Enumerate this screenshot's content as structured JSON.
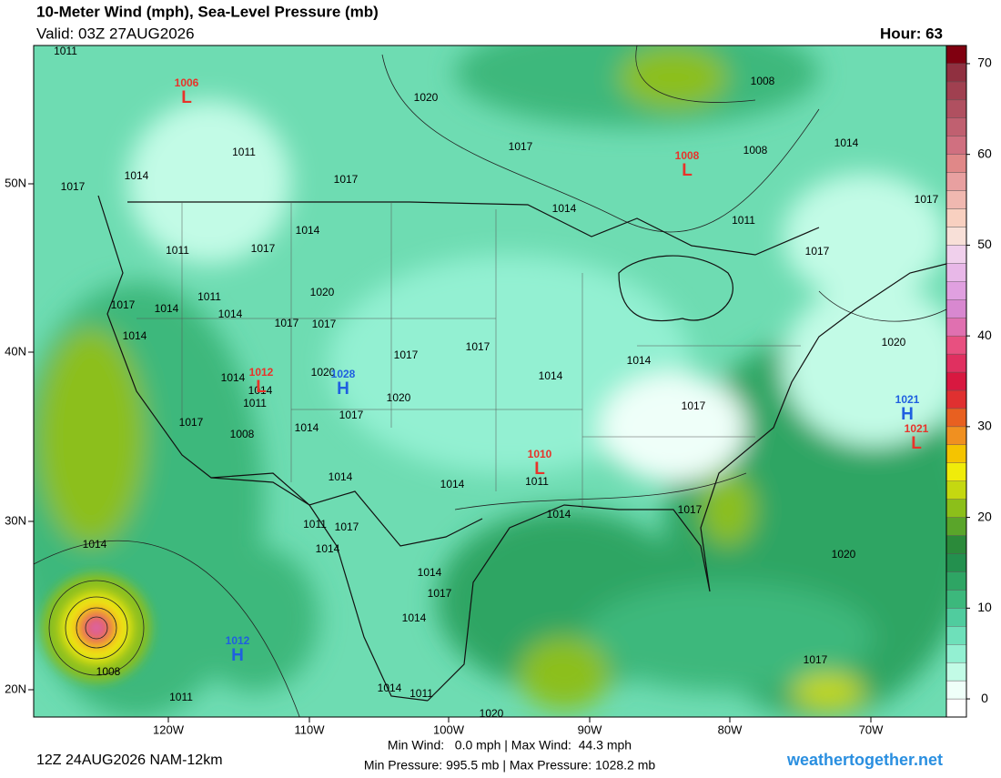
{
  "header": {
    "title": "10-Meter Wind (mph), Sea-Level Pressure (mb)",
    "valid": "Valid: 03Z 27AUG2026",
    "hour": "Hour: 63"
  },
  "map": {
    "lon_labels": [
      "120W",
      "110W",
      "100W",
      "90W",
      "80W",
      "70W"
    ],
    "lat_labels": [
      "50N",
      "40N",
      "30N",
      "20N"
    ],
    "pressure_centers": [
      {
        "kind": "L",
        "value": "1006",
        "color": "#e8332a"
      },
      {
        "kind": "L",
        "value": "1008",
        "color": "#e8332a"
      },
      {
        "kind": "L",
        "value": "1012",
        "color": "#e8332a"
      },
      {
        "kind": "H",
        "value": "1028",
        "color": "#1f5fe0"
      },
      {
        "kind": "H",
        "value": "1021",
        "color": "#1f5fe0"
      },
      {
        "kind": "L",
        "value": "1021",
        "color": "#e8332a"
      },
      {
        "kind": "L",
        "value": "1010",
        "color": "#e8332a"
      },
      {
        "kind": "H",
        "value": "1012",
        "color": "#1f5fe0"
      }
    ],
    "isobar_labels": [
      "1011",
      "1008",
      "1020",
      "1017",
      "1008",
      "1014",
      "1014",
      "1017",
      "1011",
      "1017",
      "1014",
      "1011",
      "1017",
      "1014",
      "1011",
      "1017",
      "1017",
      "1020",
      "1011",
      "1017",
      "1014",
      "1014",
      "1017",
      "1017",
      "1014",
      "1017",
      "1017",
      "1020",
      "1014",
      "1014",
      "1014",
      "1014",
      "1020",
      "1011",
      "1020",
      "1017",
      "1017",
      "1017",
      "1008",
      "1014",
      "1014",
      "1014",
      "1011",
      "1014",
      "1017",
      "1011",
      "1017",
      "1014",
      "1014",
      "1020",
      "1014",
      "1017",
      "1014",
      "1017",
      "1008",
      "1011",
      "1014",
      "1011",
      "1020"
    ]
  },
  "colorbar": {
    "ylim": [
      -2,
      72
    ],
    "yticks": [
      0,
      10,
      20,
      30,
      40,
      50,
      60,
      70
    ],
    "bins": [
      -2,
      0,
      2,
      4,
      6,
      8,
      10,
      12,
      14,
      16,
      18,
      20,
      22,
      24,
      26,
      28,
      30,
      32,
      34,
      36,
      38,
      40,
      42,
      44,
      46,
      48,
      50,
      52,
      54,
      56,
      58,
      60,
      62,
      64,
      66,
      68,
      70,
      72
    ],
    "colors": [
      "#ffffff",
      "#effff9",
      "#c2fbe6",
      "#93f0d2",
      "#6ee0ba",
      "#50cc9e",
      "#3cb87c",
      "#2ea564",
      "#23904e",
      "#2b8a3a",
      "#5aa52a",
      "#8cbf1a",
      "#c5d810",
      "#f0ec0a",
      "#f5c400",
      "#f09020",
      "#e86020",
      "#e03030",
      "#d81840",
      "#e03060",
      "#e85080",
      "#e070b0",
      "#d888d0",
      "#e0a0e0",
      "#e8b8e8",
      "#f0d0ec",
      "#f8e0d8",
      "#f8d0c0",
      "#f0b8b0",
      "#e8a0a0",
      "#e08888",
      "#d07080",
      "#c06070",
      "#b05060",
      "#a04050",
      "#903040",
      "#800010"
    ]
  },
  "footer": {
    "run": "12Z 24AUG2026 NAM-12km",
    "wind": "Min Wind:   0.0 mph | Max Wind:  44.3 mph",
    "pressure": "Min Pressure: 995.5 mb | Max Pressure: 1028.2 mb",
    "site": "weathertogether.net"
  }
}
